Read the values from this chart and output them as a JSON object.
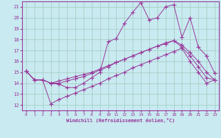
{
  "xlabel": "Windchill (Refroidissement éolien,°C)",
  "x_values": [
    0,
    1,
    2,
    3,
    4,
    5,
    6,
    7,
    8,
    9,
    10,
    11,
    12,
    13,
    14,
    15,
    16,
    17,
    18,
    19,
    20,
    21,
    22,
    23
  ],
  "line1": [
    15.1,
    14.3,
    14.3,
    14.0,
    13.9,
    13.6,
    13.6,
    14.0,
    14.5,
    15.0,
    17.8,
    18.1,
    19.5,
    20.5,
    21.4,
    19.8,
    20.0,
    21.0,
    21.2,
    18.2,
    20.0,
    17.3,
    16.5,
    14.9
  ],
  "line2": [
    15.1,
    14.3,
    14.3,
    14.0,
    14.0,
    14.2,
    14.4,
    14.6,
    14.9,
    15.2,
    15.5,
    15.9,
    16.2,
    16.5,
    16.8,
    17.1,
    17.4,
    17.6,
    17.9,
    17.3,
    16.5,
    15.5,
    14.5,
    14.3
  ],
  "line3": [
    15.1,
    14.3,
    14.3,
    14.0,
    14.2,
    14.4,
    14.6,
    14.8,
    15.0,
    15.3,
    15.6,
    15.9,
    16.2,
    16.5,
    16.8,
    17.1,
    17.4,
    17.7,
    17.9,
    17.5,
    16.8,
    16.0,
    15.0,
    14.3
  ],
  "line4": [
    15.1,
    14.3,
    14.3,
    12.1,
    12.5,
    12.8,
    13.1,
    13.4,
    13.7,
    14.0,
    14.4,
    14.7,
    15.0,
    15.4,
    15.7,
    16.0,
    16.3,
    16.6,
    16.9,
    17.2,
    16.0,
    15.0,
    14.0,
    14.3
  ],
  "line_color": "#993399",
  "bg_color": "#c8eaf0",
  "grid_color": "#a0c8bc",
  "ylim": [
    11.5,
    21.5
  ],
  "xlim": [
    -0.5,
    23.5
  ],
  "yticks": [
    12,
    13,
    14,
    15,
    16,
    17,
    18,
    19,
    20,
    21
  ],
  "xticks": [
    0,
    1,
    2,
    3,
    4,
    5,
    6,
    7,
    8,
    9,
    10,
    11,
    12,
    13,
    14,
    15,
    16,
    17,
    18,
    19,
    20,
    21,
    22,
    23
  ]
}
